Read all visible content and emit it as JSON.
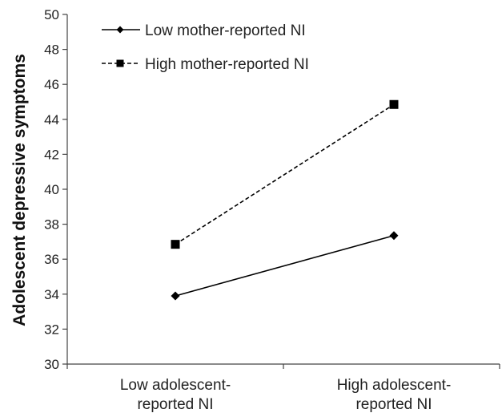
{
  "chart_data": {
    "type": "line",
    "title": "",
    "xlabel": "",
    "ylabel": "Adolescent depressive symptoms",
    "ylim": [
      30,
      50
    ],
    "yticks": [
      "30",
      "32",
      "34",
      "36",
      "38",
      "40",
      "42",
      "44",
      "46",
      "48",
      "50"
    ],
    "categories": [
      [
        "Low adolescent-",
        "reported NI"
      ],
      [
        "High adolescent-",
        "reported NI"
      ]
    ],
    "grid": false,
    "legend_position": "top-left",
    "series": [
      {
        "name": "Low mother-reported NI",
        "values": [
          33.9,
          37.35
        ],
        "marker": "diamond",
        "line_style": "solid",
        "color": "#000000"
      },
      {
        "name": "High mother-reported NI",
        "values": [
          36.85,
          44.85
        ],
        "marker": "square",
        "line_style": "dashed",
        "color": "#000000"
      }
    ]
  }
}
